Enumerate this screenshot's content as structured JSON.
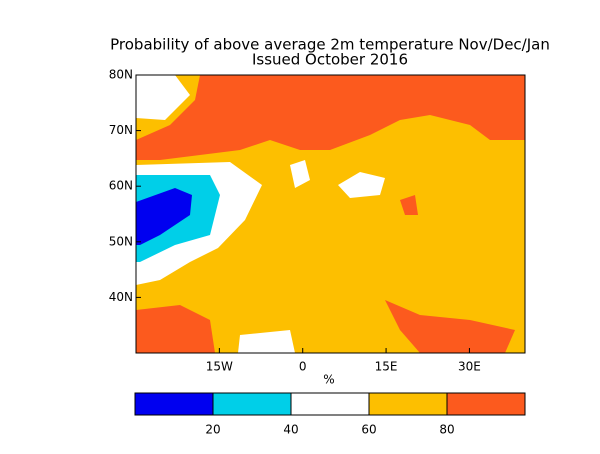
{
  "chart_data": {
    "type": "map",
    "title": "Probability of above average 2m temperature Nov/Dec/Jan",
    "subtitle": "Issued October 2016",
    "xlim": [
      -30,
      40
    ],
    "ylim": [
      30,
      80
    ],
    "xticks": [
      {
        "value": -15,
        "label": "15W"
      },
      0,
      {
        "value": 15,
        "label": "15E"
      },
      {
        "value": 30,
        "label": "30E"
      }
    ],
    "yticks": [
      {
        "value": 40,
        "label": "40N"
      },
      {
        "value": 50,
        "label": "50N"
      },
      {
        "value": 60,
        "label": "60N"
      },
      {
        "value": 70,
        "label": "70N"
      },
      {
        "value": 80,
        "label": "80N"
      }
    ],
    "colorbar": {
      "label": "%",
      "clim": [
        0,
        100
      ],
      "cticks": [
        20,
        40,
        60,
        80
      ],
      "colors": [
        "#0000f0",
        "#00cfe8",
        "#ffffff",
        "#fdbf00",
        "#fc5a1e"
      ]
    }
  }
}
